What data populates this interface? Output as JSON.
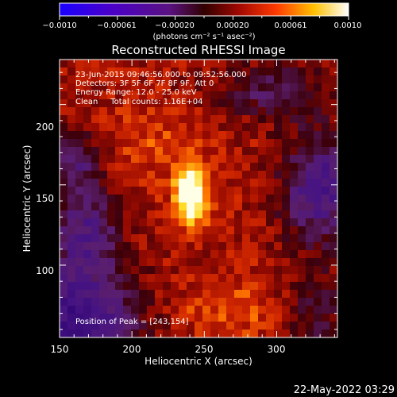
{
  "colorbar": {
    "tick_labels": [
      "−0.0010",
      "−0.00061",
      "−0.00020",
      "0.00020",
      "0.00061",
      "0.0010"
    ],
    "unit_label": "(photons cm⁻² s⁻¹ asec⁻²)",
    "range": [
      -0.001,
      0.001
    ],
    "colors": [
      "#1a00ff",
      "#4b00c8",
      "#6a1aa0",
      "#2a0000",
      "#c41000",
      "#ff5a00",
      "#ffd400",
      "#ffffff"
    ]
  },
  "chart_data": {
    "type": "heatmap",
    "title": "Reconstructed RHESSI Image",
    "xlabel": "Heliocentric X (arcsec)",
    "ylabel": "Heliocentric Y (arcsec)",
    "xlim": [
      150,
      342
    ],
    "ylim": [
      55,
      228
    ],
    "x_ticks": [
      "150",
      "200",
      "250",
      "300"
    ],
    "y_ticks": [
      "100",
      "150",
      "200"
    ],
    "annotations": [
      "23-Jun-2015 09:46:56.000 to 09:52:56.000",
      "Detectors: 3F 5F 6F 7F 8F 9F, Att 0",
      "Energy Range: 12.0 - 25.0 keV",
      "Clean     Total counts: 1.16E+04"
    ],
    "peak_label": "Position of Peak = [243,154]",
    "peak": [
      243,
      154
    ]
  },
  "footer": {
    "timestamp": "22-May-2022 03:29"
  }
}
